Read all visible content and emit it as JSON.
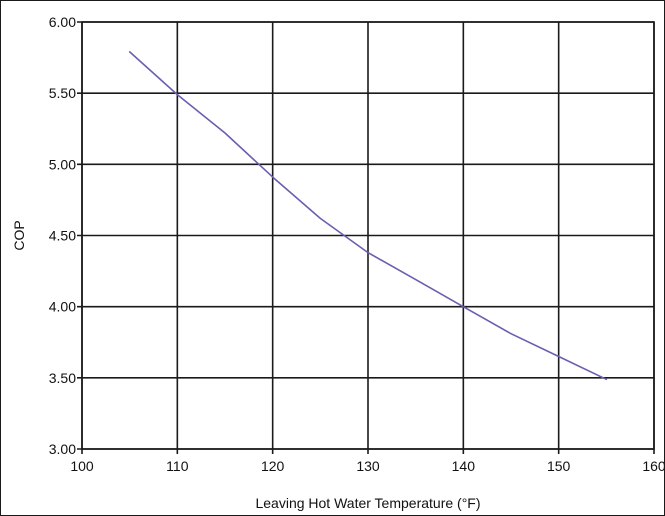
{
  "chart_data": {
    "type": "line",
    "title": "",
    "xlabel": "Leaving Hot Water Temperature (°F)",
    "ylabel": "COP",
    "xlim": [
      100,
      160
    ],
    "ylim": [
      3.0,
      6.0
    ],
    "x_ticks": [
      100,
      110,
      120,
      130,
      140,
      150,
      160
    ],
    "x_tick_labels": [
      "100",
      "110",
      "120",
      "130",
      "140",
      "150",
      "160"
    ],
    "y_ticks": [
      3.0,
      3.5,
      4.0,
      4.5,
      5.0,
      5.5,
      6.0
    ],
    "y_tick_labels": [
      "3.00",
      "3.50",
      "4.00",
      "4.50",
      "5.00",
      "5.50",
      "6.00"
    ],
    "grid": true,
    "legend": "none",
    "series": [
      {
        "color": "#6a5fb0",
        "x": [
          105,
          110,
          115,
          120,
          125,
          130,
          135,
          140,
          145,
          150,
          155
        ],
        "y": [
          5.79,
          5.49,
          5.22,
          4.91,
          4.62,
          4.38,
          4.19,
          4.0,
          3.81,
          3.65,
          3.49
        ]
      }
    ]
  }
}
